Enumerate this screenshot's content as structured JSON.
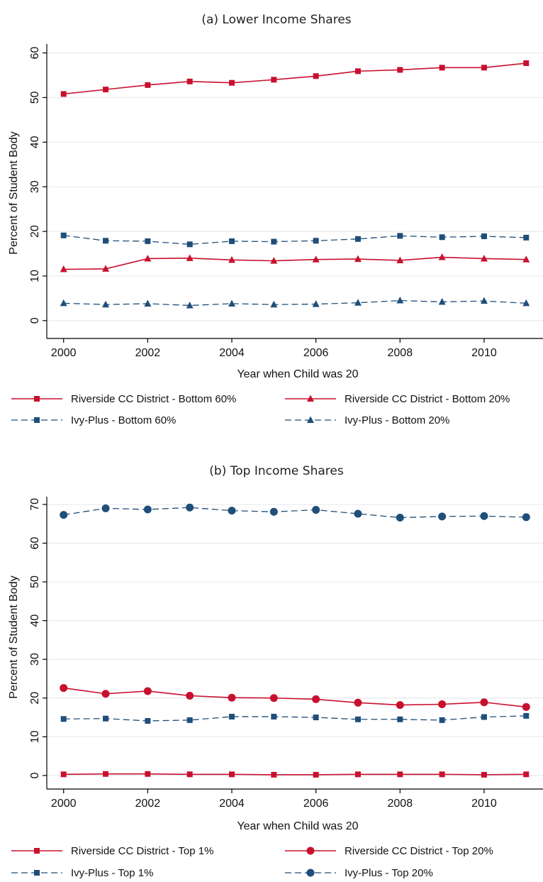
{
  "colors": {
    "red": "#c8102e",
    "navy": "#1f4e79",
    "grid": "#e6eaee",
    "axis": "#000000"
  },
  "chart_data": [
    {
      "type": "line",
      "title": "(a) Lower Income Shares",
      "xlabel": "Year when Child was 20",
      "ylabel": "Percent of Student Body",
      "ylim": [
        0,
        60
      ],
      "yticks": [
        0,
        10,
        20,
        30,
        40,
        50,
        60
      ],
      "xlim": [
        2000,
        2011
      ],
      "xticks": [
        2000,
        2002,
        2004,
        2006,
        2008,
        2010
      ],
      "grid": true,
      "legend_position": "bottom",
      "x": [
        2000,
        2001,
        2002,
        2003,
        2004,
        2005,
        2006,
        2007,
        2008,
        2009,
        2010,
        2011
      ],
      "series": [
        {
          "name": "Riverside CC District - Bottom 60%",
          "color": "red",
          "style": "solid",
          "marker": "square",
          "values": [
            50.8,
            51.8,
            52.8,
            53.6,
            53.3,
            54.0,
            54.8,
            55.9,
            56.2,
            56.7,
            56.7,
            57.7
          ]
        },
        {
          "name": "Riverside CC District - Bottom 20%",
          "color": "red",
          "style": "solid",
          "marker": "triangle",
          "values": [
            11.5,
            11.6,
            13.9,
            14.0,
            13.6,
            13.4,
            13.7,
            13.8,
            13.5,
            14.2,
            13.9,
            13.7
          ]
        },
        {
          "name": "Ivy-Plus - Bottom 60%",
          "color": "navy",
          "style": "dashed",
          "marker": "square",
          "values": [
            19.1,
            17.9,
            17.8,
            17.1,
            17.8,
            17.7,
            17.9,
            18.3,
            19.0,
            18.7,
            18.9,
            18.6
          ]
        },
        {
          "name": "Ivy-Plus - Bottom 20%",
          "color": "navy",
          "style": "dashed",
          "marker": "triangle",
          "values": [
            3.9,
            3.6,
            3.8,
            3.4,
            3.8,
            3.6,
            3.7,
            4.0,
            4.5,
            4.2,
            4.4,
            3.9
          ]
        }
      ]
    },
    {
      "type": "line",
      "title": "(b) Top Income Shares",
      "xlabel": "Year when Child was 20",
      "ylabel": "Percent of Student Body",
      "ylim": [
        0,
        70
      ],
      "yticks": [
        0,
        10,
        20,
        30,
        40,
        50,
        60,
        70
      ],
      "xlim": [
        2000,
        2011
      ],
      "xticks": [
        2000,
        2002,
        2004,
        2006,
        2008,
        2010
      ],
      "grid": true,
      "legend_position": "bottom",
      "x": [
        2000,
        2001,
        2002,
        2003,
        2004,
        2005,
        2006,
        2007,
        2008,
        2009,
        2010,
        2011
      ],
      "series": [
        {
          "name": "Riverside CC District - Top 1%",
          "color": "red",
          "style": "solid",
          "marker": "square",
          "values": [
            0.3,
            0.4,
            0.4,
            0.3,
            0.3,
            0.2,
            0.2,
            0.3,
            0.3,
            0.3,
            0.2,
            0.3
          ]
        },
        {
          "name": "Riverside CC District - Top 20%",
          "color": "red",
          "style": "solid",
          "marker": "circle",
          "values": [
            22.6,
            21.1,
            21.8,
            20.6,
            20.1,
            20.0,
            19.7,
            18.8,
            18.2,
            18.4,
            18.9,
            17.7
          ]
        },
        {
          "name": "Ivy-Plus - Top 1%",
          "color": "navy",
          "style": "dashed",
          "marker": "square",
          "values": [
            14.6,
            14.7,
            14.1,
            14.3,
            15.2,
            15.2,
            15.0,
            14.5,
            14.5,
            14.3,
            15.1,
            15.4
          ]
        },
        {
          "name": "Ivy-Plus - Top 20%",
          "color": "navy",
          "style": "dashed",
          "marker": "circle",
          "values": [
            67.3,
            69.0,
            68.7,
            69.2,
            68.4,
            68.1,
            68.6,
            67.6,
            66.6,
            66.9,
            67.0,
            66.7
          ]
        }
      ]
    }
  ]
}
